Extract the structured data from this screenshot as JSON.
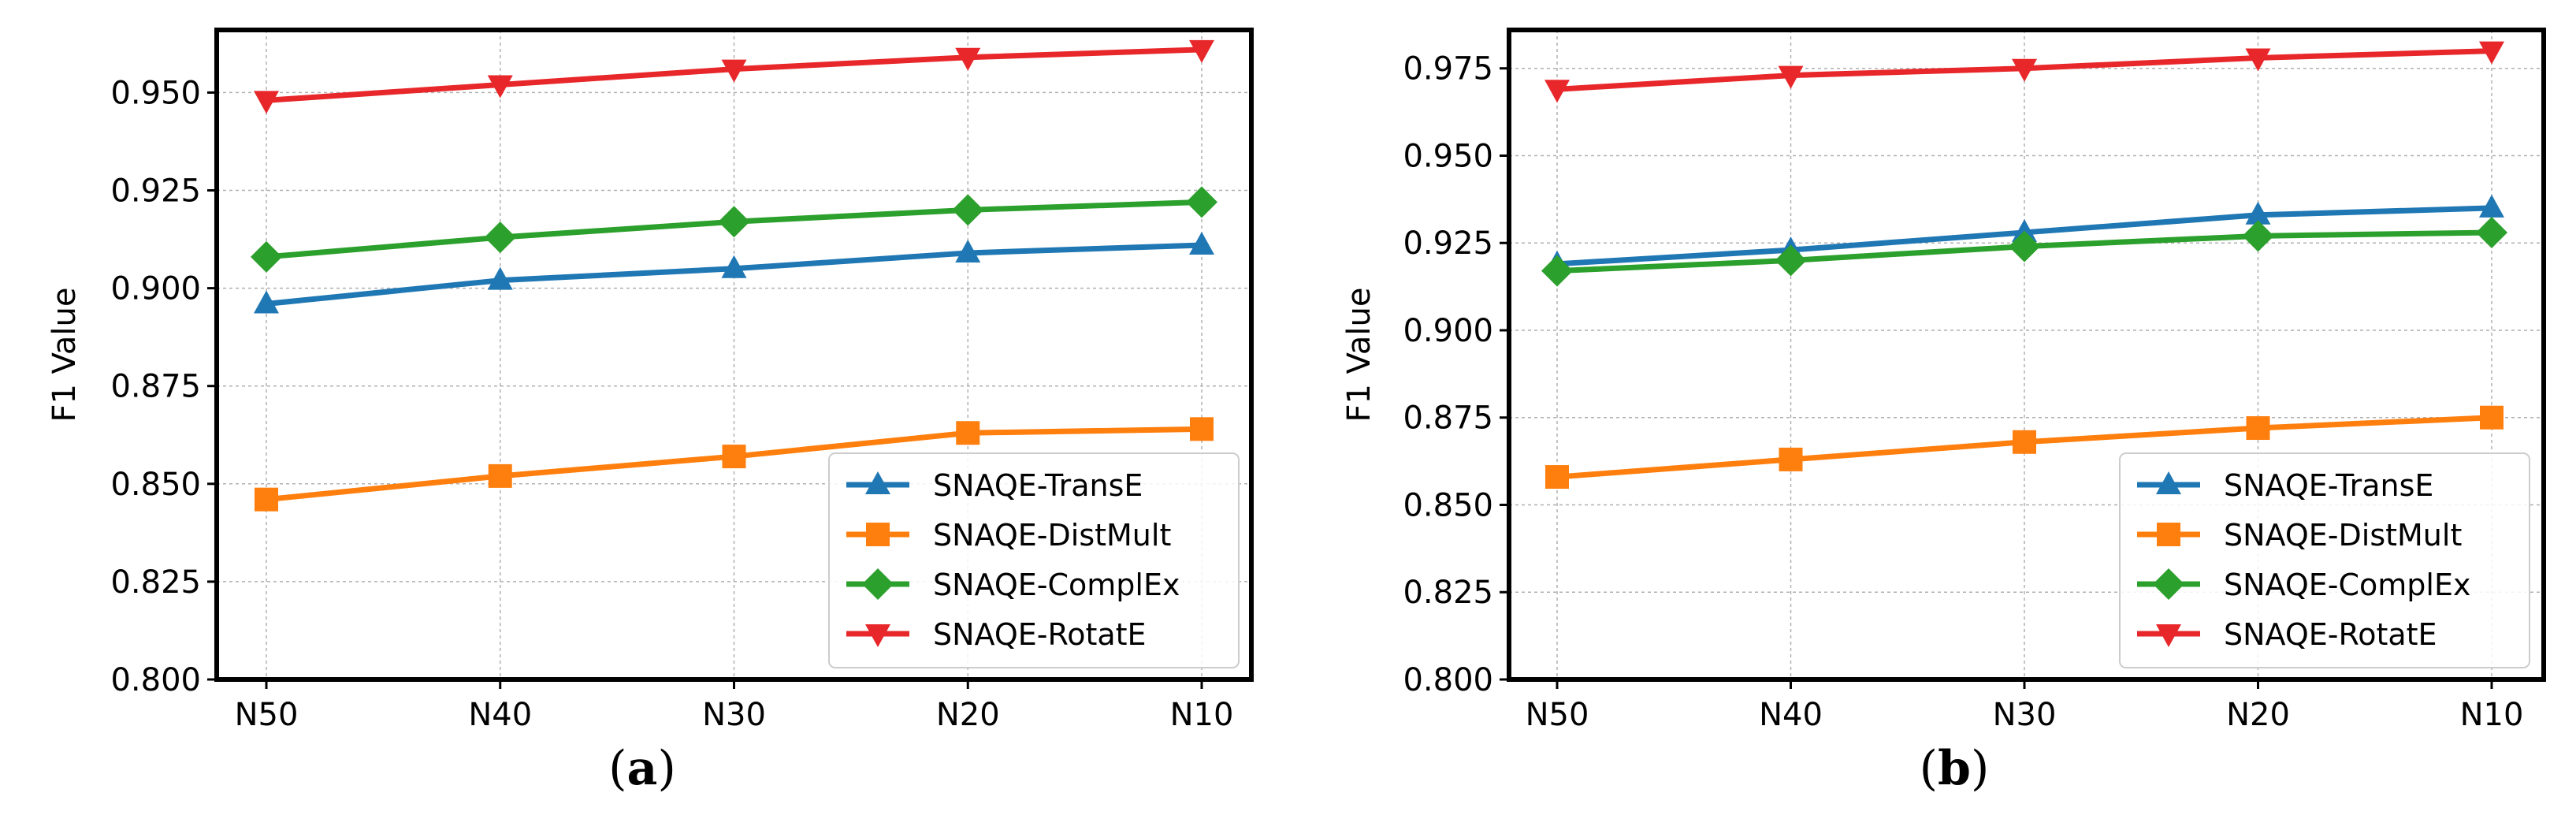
{
  "chart_data": [
    {
      "type": "line",
      "panel_label": "(a)",
      "ylabel": "F1 Value",
      "xlabel": "",
      "categories": [
        "N50",
        "N40",
        "N30",
        "N20",
        "N10"
      ],
      "ylim": [
        0.8,
        0.966
      ],
      "yticks": [
        "0.800",
        "0.825",
        "0.850",
        "0.875",
        "0.900",
        "0.925",
        "0.950"
      ],
      "grid": true,
      "legend_position": "lower-right",
      "series": [
        {
          "name": "SNAQE-TransE",
          "color": "#1f77b4",
          "marker": "triangle-up",
          "values": [
            0.896,
            0.902,
            0.905,
            0.909,
            0.911
          ]
        },
        {
          "name": "SNAQE-DistMult",
          "color": "#ff7f0e",
          "marker": "square",
          "values": [
            0.846,
            0.852,
            0.857,
            0.863,
            0.864
          ]
        },
        {
          "name": "SNAQE-ComplEx",
          "color": "#2ca02c",
          "marker": "diamond",
          "values": [
            0.908,
            0.913,
            0.917,
            0.92,
            0.922
          ]
        },
        {
          "name": "SNAQE-RotatE",
          "color": "#e8272a",
          "marker": "triangle-down",
          "values": [
            0.948,
            0.952,
            0.956,
            0.959,
            0.961
          ]
        }
      ]
    },
    {
      "type": "line",
      "panel_label": "(b)",
      "ylabel": "F1 Value",
      "xlabel": "",
      "categories": [
        "N50",
        "N40",
        "N30",
        "N20",
        "N10"
      ],
      "ylim": [
        0.8,
        0.986
      ],
      "yticks": [
        "0.800",
        "0.825",
        "0.850",
        "0.875",
        "0.900",
        "0.925",
        "0.950",
        "0.975"
      ],
      "grid": true,
      "legend_position": "lower-right",
      "series": [
        {
          "name": "SNAQE-TransE",
          "color": "#1f77b4",
          "marker": "triangle-up",
          "values": [
            0.919,
            0.923,
            0.928,
            0.933,
            0.935
          ]
        },
        {
          "name": "SNAQE-DistMult",
          "color": "#ff7f0e",
          "marker": "square",
          "values": [
            0.858,
            0.863,
            0.868,
            0.872,
            0.875
          ]
        },
        {
          "name": "SNAQE-ComplEx",
          "color": "#2ca02c",
          "marker": "diamond",
          "values": [
            0.917,
            0.92,
            0.924,
            0.927,
            0.928
          ]
        },
        {
          "name": "SNAQE-RotatE",
          "color": "#e8272a",
          "marker": "triangle-down",
          "values": [
            0.969,
            0.973,
            0.975,
            0.978,
            0.98
          ]
        }
      ]
    }
  ]
}
